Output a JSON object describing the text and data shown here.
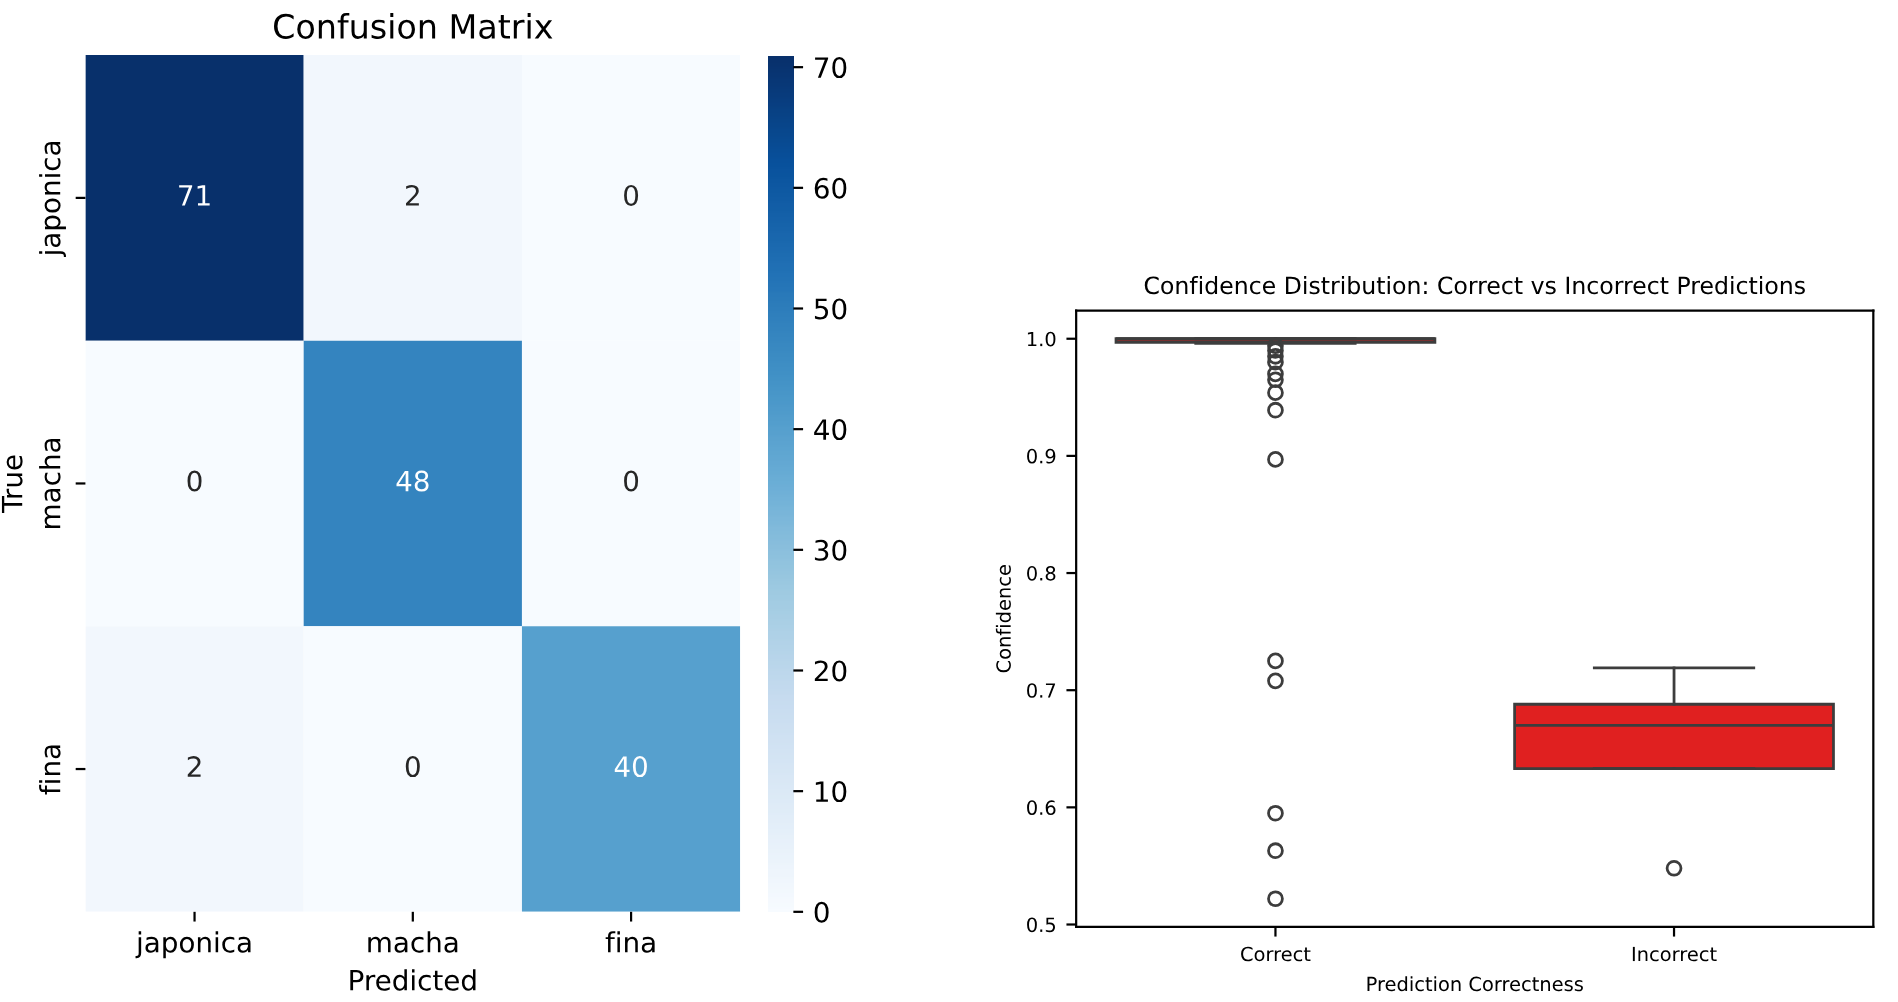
{
  "chart_data": [
    {
      "type": "heatmap",
      "title": "Confusion Matrix",
      "xlabel": "Predicted",
      "ylabel": "True",
      "categories": [
        "japonica",
        "macha",
        "fina"
      ],
      "y_categories": [
        "japonica",
        "macha",
        "fina"
      ],
      "cells": [
        [
          71,
          2,
          0
        ],
        [
          0,
          48,
          0
        ],
        [
          2,
          0,
          40
        ]
      ],
      "data_labels": true,
      "clim": [
        0,
        71
      ],
      "cticks": [
        0,
        10,
        20,
        30,
        40,
        50,
        60,
        70
      ]
    },
    {
      "type": "box",
      "title": "Confidence Distribution: Correct vs Incorrect Predictions",
      "xlabel": "Prediction Correctness",
      "ylabel": "Confidence",
      "categories": [
        "Correct",
        "Incorrect"
      ],
      "colors": [
        "#e02020",
        "#e02020"
      ],
      "boxes": [
        {
          "low": 0.996,
          "q1": 0.997,
          "median": 1.0,
          "q3": 1.0,
          "high": 1.0,
          "outliers": [
            0.994,
            0.99,
            0.985,
            0.98,
            0.97,
            0.965,
            0.954,
            0.939,
            0.897,
            0.725,
            0.708,
            0.595,
            0.563,
            0.522
          ]
        },
        {
          "low": 0.633,
          "q1": 0.633,
          "median": 0.67,
          "q3": 0.688,
          "high": 0.719,
          "outliers": [
            0.548
          ]
        }
      ],
      "ylim": [
        0.498,
        1.024
      ],
      "yticks": [
        0.5,
        0.6,
        0.7,
        0.8,
        0.9,
        {
          "value": 1,
          "label": "1.0"
        }
      ],
      "marker": "circle"
    }
  ]
}
